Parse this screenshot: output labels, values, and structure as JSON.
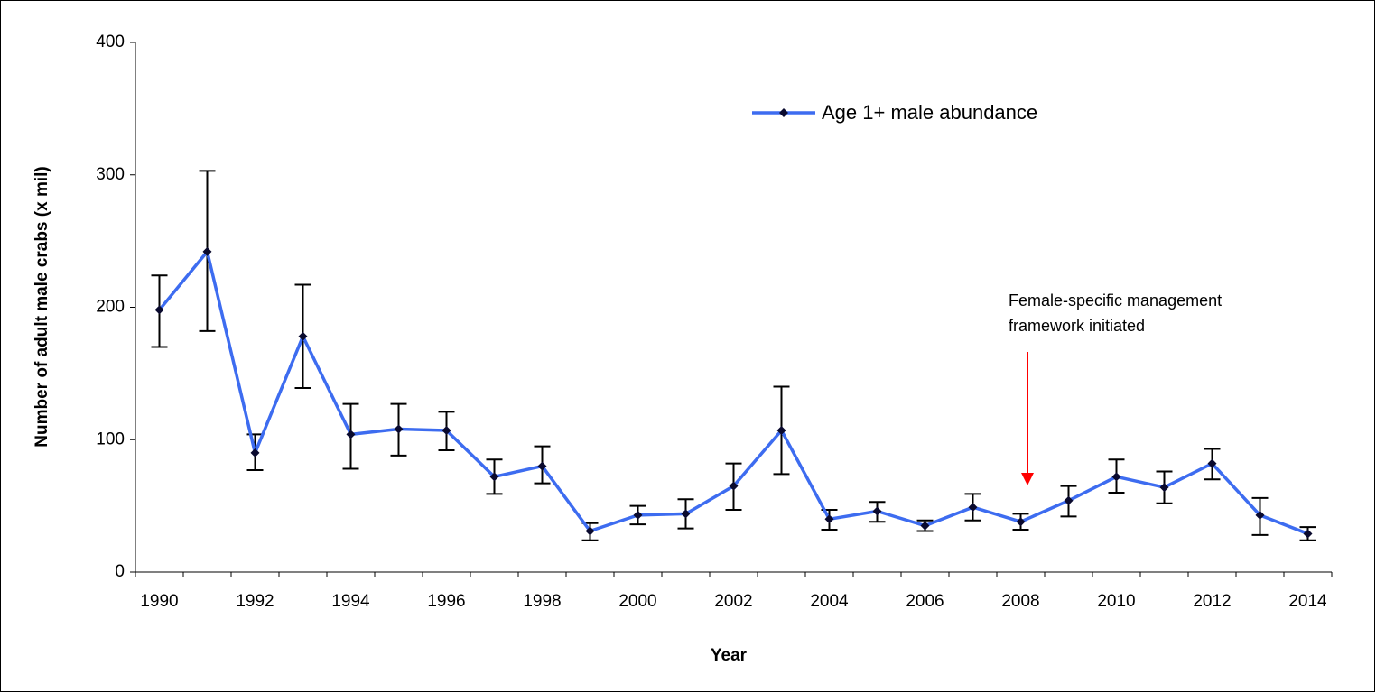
{
  "chart_data": {
    "type": "line",
    "xlabel": "Year",
    "ylabel": "Number of adult male crabs (x mil)",
    "categories": [
      "1990",
      null,
      "1992",
      null,
      "1994",
      null,
      "1996",
      null,
      "1998",
      null,
      "2000",
      null,
      "2002",
      null,
      "2004",
      null,
      "2006",
      null,
      "2008",
      null,
      "2010",
      null,
      "2012",
      null,
      "2014"
    ],
    "series": [
      {
        "name": "Age 1+ male abundance",
        "color": "#3d6cf0",
        "marker_color": "#0a0a2e",
        "values": [
          198,
          242,
          90,
          178,
          104,
          108,
          107,
          72,
          80,
          31,
          43,
          44,
          65,
          107,
          40,
          46,
          35,
          49,
          38,
          54,
          72,
          64,
          82,
          43,
          29
        ],
        "upper": [
          224,
          303,
          104,
          217,
          127,
          127,
          121,
          85,
          95,
          37,
          50,
          55,
          82,
          140,
          47,
          53,
          39,
          59,
          44,
          65,
          85,
          76,
          93,
          56,
          34
        ],
        "lower": [
          170,
          182,
          77,
          139,
          78,
          88,
          92,
          59,
          67,
          24,
          36,
          33,
          47,
          74,
          32,
          38,
          31,
          39,
          32,
          42,
          60,
          52,
          70,
          28,
          24
        ]
      }
    ],
    "ylim": [
      0,
      400
    ],
    "yticks": [
      0,
      100,
      200,
      300,
      400
    ],
    "annotation": {
      "lines": [
        "Female-specific management",
        "framework initiated"
      ],
      "color": "#ff0000"
    }
  }
}
